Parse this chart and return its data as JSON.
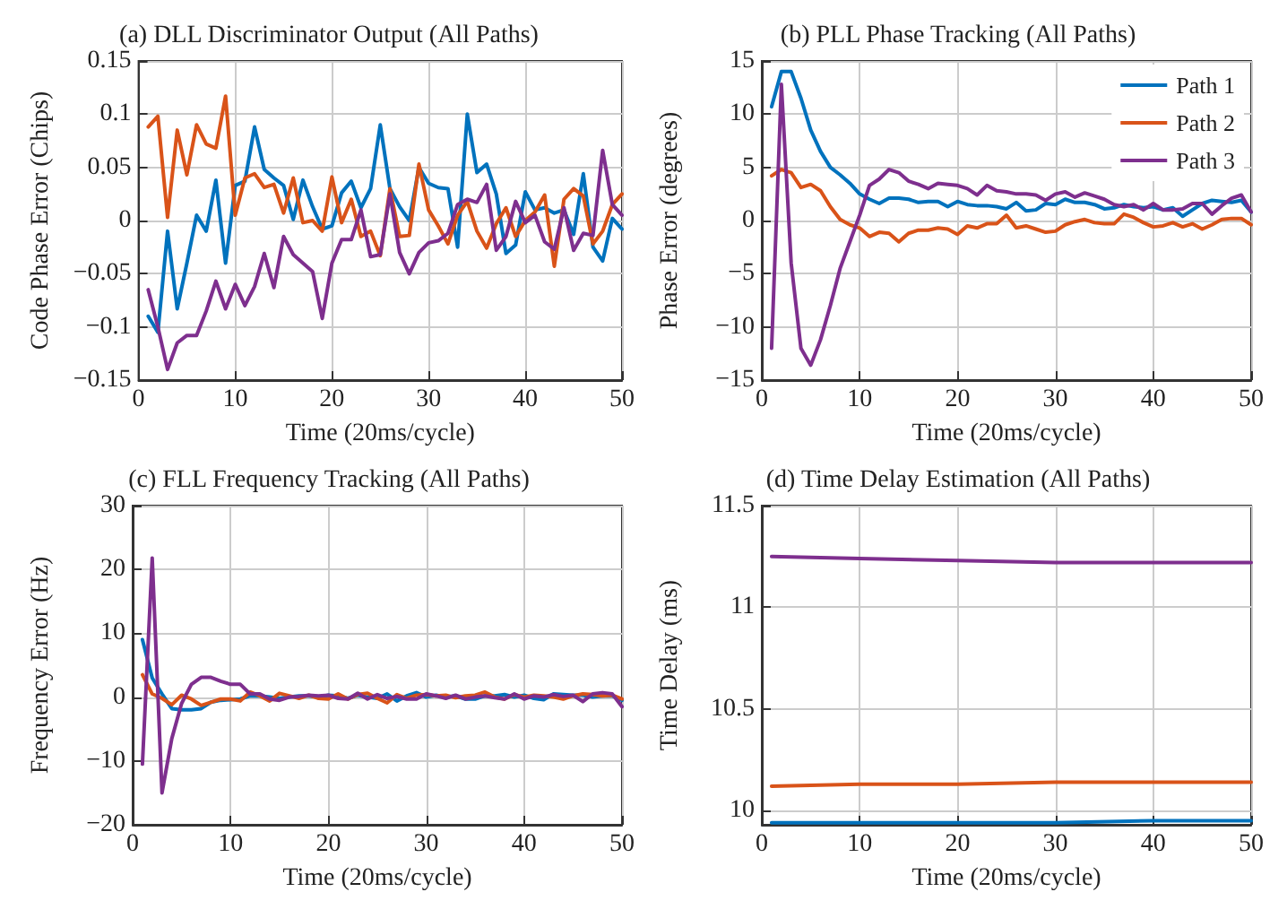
{
  "chart_data": [
    {
      "type": "line",
      "title": "(a) DLL Discriminator Output (All Paths)",
      "xlabel": "Time (20ms/cycle)",
      "ylabel": "Code Phase Error (Chips)",
      "marker": "none",
      "grid": true,
      "legend": false,
      "xlim": [
        0,
        50
      ],
      "xticks": [
        0,
        10,
        20,
        30,
        40,
        50
      ],
      "ylim": [
        -0.15,
        0.15
      ],
      "yticks": [
        -0.15,
        -0.1,
        -0.05,
        0,
        0.05,
        0.1,
        0.15
      ],
      "x": [
        1,
        2,
        3,
        4,
        5,
        6,
        7,
        8,
        9,
        10,
        11,
        12,
        13,
        14,
        15,
        16,
        17,
        18,
        19,
        20,
        21,
        22,
        23,
        24,
        25,
        26,
        27,
        28,
        29,
        30,
        31,
        32,
        33,
        34,
        35,
        36,
        37,
        38,
        39,
        40,
        41,
        42,
        43,
        44,
        45,
        46,
        47,
        48,
        49,
        50
      ],
      "series": [
        {
          "color": "#0072bd",
          "values": [
            -0.09,
            -0.105,
            -0.01,
            -0.083,
            -0.04,
            0.005,
            -0.01,
            0.038,
            -0.04,
            0.033,
            0.037,
            0.088,
            0.048,
            0.04,
            0.033,
            0.001,
            0.038,
            0.013,
            -0.008,
            -0.005,
            0.026,
            0.037,
            0.012,
            0.03,
            0.09,
            0.03,
            0.013,
            0.0,
            0.05,
            0.035,
            0.031,
            0.03,
            -0.025,
            0.1,
            0.045,
            0.053,
            0.025,
            -0.031,
            -0.023,
            0.027,
            0.01,
            0.012,
            0.007,
            0.01,
            -0.013,
            0.044,
            -0.025,
            -0.038,
            0.002,
            -0.008
          ]
        },
        {
          "color": "#d95319",
          "values": [
            0.088,
            0.098,
            0.003,
            0.085,
            0.043,
            0.09,
            0.072,
            0.068,
            0.117,
            0.005,
            0.04,
            0.044,
            0.031,
            0.034,
            0.007,
            0.04,
            -0.002,
            0.0,
            -0.01,
            0.041,
            -0.002,
            0.02,
            -0.015,
            -0.01,
            -0.033,
            0.03,
            -0.015,
            -0.014,
            0.053,
            0.01,
            -0.005,
            -0.022,
            0.005,
            0.018,
            -0.01,
            -0.026,
            -0.003,
            0.012,
            -0.015,
            0.0,
            0.008,
            0.024,
            -0.043,
            0.02,
            0.03,
            0.023,
            -0.022,
            -0.01,
            0.015,
            0.025
          ]
        },
        {
          "color": "#7e2f8e",
          "values": [
            -0.065,
            -0.1,
            -0.14,
            -0.115,
            -0.108,
            -0.108,
            -0.085,
            -0.057,
            -0.083,
            -0.06,
            -0.08,
            -0.062,
            -0.031,
            -0.063,
            -0.015,
            -0.032,
            -0.04,
            -0.048,
            -0.092,
            -0.04,
            -0.018,
            -0.018,
            0.01,
            -0.034,
            -0.032,
            0.025,
            -0.03,
            -0.05,
            -0.03,
            -0.021,
            -0.019,
            -0.012,
            0.015,
            0.02,
            0.017,
            0.034,
            -0.028,
            -0.015,
            0.018,
            -0.002,
            0.005,
            -0.02,
            -0.027,
            0.012,
            -0.028,
            -0.012,
            -0.014,
            0.066,
            0.015,
            0.005
          ]
        }
      ]
    },
    {
      "type": "line",
      "title": "(b) PLL Phase Tracking (All Paths)",
      "xlabel": "Time (20ms/cycle)",
      "ylabel": "Phase Error (degrees)",
      "marker": "none",
      "grid": true,
      "legend": "top right",
      "xlim": [
        0,
        50
      ],
      "xticks": [
        0,
        10,
        20,
        30,
        40,
        50
      ],
      "ylim": [
        -15,
        15
      ],
      "yticks": [
        -15,
        -10,
        -5,
        0,
        5,
        10,
        15
      ],
      "x": [
        1,
        2,
        3,
        4,
        5,
        6,
        7,
        8,
        9,
        10,
        11,
        12,
        13,
        14,
        15,
        16,
        17,
        18,
        19,
        20,
        21,
        22,
        23,
        24,
        25,
        26,
        27,
        28,
        29,
        30,
        31,
        32,
        33,
        34,
        35,
        36,
        37,
        38,
        39,
        40,
        41,
        42,
        43,
        44,
        45,
        46,
        47,
        48,
        49,
        50
      ],
      "series": [
        {
          "name": "Path 1",
          "color": "#0072bd",
          "values": [
            10.7,
            14,
            14,
            11.5,
            8.5,
            6.5,
            5,
            4.3,
            3.5,
            2.5,
            2,
            1.6,
            2.1,
            2.1,
            2,
            1.7,
            1.8,
            1.8,
            1.3,
            1.8,
            1.5,
            1.4,
            1.4,
            1.3,
            1.1,
            1.7,
            0.9,
            1,
            1.6,
            1.5,
            2,
            1.7,
            1.7,
            1.5,
            1.1,
            1.2,
            1.5,
            1.3,
            1.2,
            1.3,
            1,
            1.2,
            0.4,
            1,
            1.6,
            1.9,
            1.8,
            1.7,
            1.9,
            0.8
          ]
        },
        {
          "name": "Path 2",
          "color": "#d95319",
          "values": [
            4.2,
            4.8,
            4.5,
            3.1,
            3.4,
            2.8,
            1.3,
            0.1,
            -0.4,
            -0.7,
            -1.5,
            -1.1,
            -1.2,
            -2,
            -1.2,
            -0.9,
            -0.9,
            -0.7,
            -0.8,
            -1.3,
            -0.5,
            -0.7,
            -0.3,
            -0.3,
            0.5,
            -0.7,
            -0.5,
            -0.8,
            -1.1,
            -1,
            -0.4,
            -0.1,
            0.1,
            -0.2,
            -0.3,
            -0.3,
            0.6,
            0.3,
            -0.2,
            -0.6,
            -0.5,
            -0.2,
            -0.6,
            -0.3,
            -0.8,
            -0.4,
            0.1,
            0.2,
            0.2,
            -0.4
          ]
        },
        {
          "name": "Path 3",
          "color": "#7e2f8e",
          "values": [
            -12,
            12.8,
            -4,
            -12,
            -13.6,
            -11.2,
            -8,
            -4.5,
            -2,
            0.5,
            3.3,
            3.9,
            4.8,
            4.5,
            3.7,
            3.4,
            3,
            3.5,
            3.4,
            3.3,
            3,
            2.4,
            3.3,
            2.8,
            2.7,
            2.5,
            2.5,
            2.4,
            1.9,
            2.5,
            2.7,
            2.2,
            2.6,
            2.3,
            2,
            1.5,
            1.3,
            1.5,
            1,
            1.6,
            1,
            1,
            1.1,
            1.6,
            1.6,
            0.6,
            1.4,
            2.1,
            2.4,
            0.8
          ]
        }
      ]
    },
    {
      "type": "line",
      "title": "(c) FLL Frequency Tracking (All Paths)",
      "xlabel": "Time (20ms/cycle)",
      "ylabel": "Frequency Error (Hz)",
      "marker": "none",
      "grid": true,
      "legend": false,
      "xlim": [
        0,
        50
      ],
      "xticks": [
        0,
        10,
        20,
        30,
        40,
        50
      ],
      "ylim": [
        -20,
        30
      ],
      "yticks": [
        -20,
        -10,
        0,
        10,
        20,
        30
      ],
      "x": [
        1,
        2,
        3,
        4,
        5,
        6,
        7,
        8,
        9,
        10,
        11,
        12,
        13,
        14,
        15,
        16,
        17,
        18,
        19,
        20,
        21,
        22,
        23,
        24,
        25,
        26,
        27,
        28,
        29,
        30,
        31,
        32,
        33,
        34,
        35,
        36,
        37,
        38,
        39,
        40,
        41,
        42,
        43,
        44,
        45,
        46,
        47,
        48,
        49,
        50
      ],
      "series": [
        {
          "color": "#0072bd",
          "values": [
            9,
            3,
            0.5,
            -1.8,
            -2,
            -2,
            -1.8,
            -0.8,
            -0.5,
            -0.4,
            -0.3,
            0.2,
            0.2,
            0,
            -0.2,
            0,
            0.2,
            0.2,
            0,
            0.3,
            0.2,
            -0.2,
            0.3,
            0,
            -0.2,
            0.5,
            -0.6,
            0.2,
            0.7,
            0,
            0.3,
            0,
            0.2,
            -0.3,
            -0.3,
            0.2,
            0.2,
            0.4,
            0,
            0.3,
            -0.2,
            -0.4,
            0.5,
            0.4,
            0.3,
            0.3,
            0,
            0.2,
            0.2,
            -0.5
          ]
        },
        {
          "color": "#d95319",
          "values": [
            3.5,
            0.5,
            -0.2,
            -1.2,
            0.3,
            -0.3,
            -1.3,
            -0.8,
            -0.3,
            -0.3,
            -0.6,
            0.8,
            0.2,
            -0.6,
            0.6,
            0.2,
            -0.2,
            0.3,
            -0.2,
            -0.3,
            0.5,
            -0.3,
            0.4,
            0.6,
            -0.2,
            -0.9,
            0.4,
            -0.2,
            0.3,
            0.4,
            0.2,
            0.3,
            -0.1,
            0.2,
            0.3,
            0.8,
            0,
            -0.3,
            0.4,
            0,
            0.3,
            0.2,
            0,
            -0.3,
            0.2,
            0.5,
            0.4,
            0.2,
            0.3,
            -0.3
          ]
        },
        {
          "color": "#7e2f8e",
          "values": [
            -10.5,
            21.8,
            -15,
            -6.5,
            -1,
            2,
            3.1,
            3.1,
            2.5,
            2,
            2,
            0.5,
            0.5,
            -0.3,
            -0.5,
            0,
            0.1,
            0.3,
            0.2,
            0.3,
            -0.2,
            -0.3,
            0.6,
            -0.3,
            0.4,
            -0.2,
            0.1,
            -0.3,
            -0.3,
            0.5,
            0.2,
            -0.2,
            0.3,
            -0.3,
            0,
            0.2,
            -0.1,
            -0.3,
            0.5,
            -0.3,
            0.2,
            0,
            0.4,
            0.1,
            0.3,
            -0.7,
            0.5,
            0.7,
            0.5,
            -1.5
          ]
        }
      ]
    },
    {
      "type": "line",
      "title": "(d) Time Delay Estimation (All Paths)",
      "xlabel": "Time (20ms/cycle)",
      "ylabel": "Time Delay (ms)",
      "marker": "none",
      "grid": true,
      "legend": false,
      "xlim": [
        0,
        50
      ],
      "xticks": [
        0,
        10,
        20,
        30,
        40,
        50
      ],
      "ylim": [
        9.93,
        11.5
      ],
      "yticks": [
        10,
        10.5,
        11,
        11.5
      ],
      "x": [
        1,
        10,
        20,
        30,
        40,
        50
      ],
      "series": [
        {
          "color": "#0072bd",
          "values": [
            9.94,
            9.94,
            9.94,
            9.94,
            9.95,
            9.95
          ]
        },
        {
          "color": "#d95319",
          "values": [
            10.12,
            10.13,
            10.13,
            10.14,
            10.14,
            10.14
          ]
        },
        {
          "color": "#7e2f8e",
          "values": [
            11.25,
            11.24,
            11.23,
            11.22,
            11.22,
            11.22
          ]
        }
      ]
    }
  ]
}
